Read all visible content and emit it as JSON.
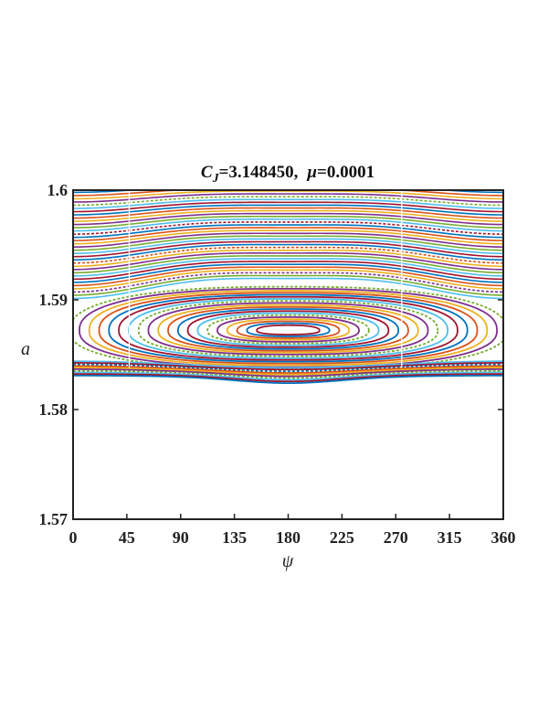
{
  "chart_data": {
    "type": "line",
    "title": {
      "cj_symbol": "C",
      "cj_subscript": "J",
      "cj_value": "=3.148450,",
      "mu_symbol": "μ",
      "mu_value": "=0.0001"
    },
    "xlabel": "ψ",
    "ylabel": "a",
    "xlim": [
      0,
      360
    ],
    "ylim": [
      1.57,
      1.6
    ],
    "xticks": [
      0,
      45,
      90,
      135,
      180,
      225,
      270,
      315,
      360
    ],
    "yticks": [
      1.57,
      1.58,
      1.59,
      1.6
    ],
    "xtick_labels": [
      "0",
      "45",
      "90",
      "135",
      "180",
      "225",
      "270",
      "315",
      "360"
    ],
    "ytick_labels": [
      "1.57",
      "1.58",
      "1.59",
      "1.6"
    ],
    "grid": false,
    "legend": "none",
    "description_series": {
      "circulating_upper": {
        "a_levels_at_psi0": [
          1.5995,
          1.5985,
          1.5975,
          1.5965,
          1.5955,
          1.5945,
          1.5935,
          1.5925,
          1.5918,
          1.5912,
          1.5905,
          1.5898
        ],
        "wave_amplitude": 0.0008
      },
      "libration_center": {
        "psi": 180,
        "a": 1.5872
      },
      "separatrix_bottom_a": 1.5835,
      "separatrix_top_a": 1.5915
    },
    "colors": [
      "#0072BD",
      "#D95319",
      "#EDB120",
      "#7E2F8E",
      "#77AC30",
      "#4DBEEE",
      "#A2142F"
    ]
  }
}
